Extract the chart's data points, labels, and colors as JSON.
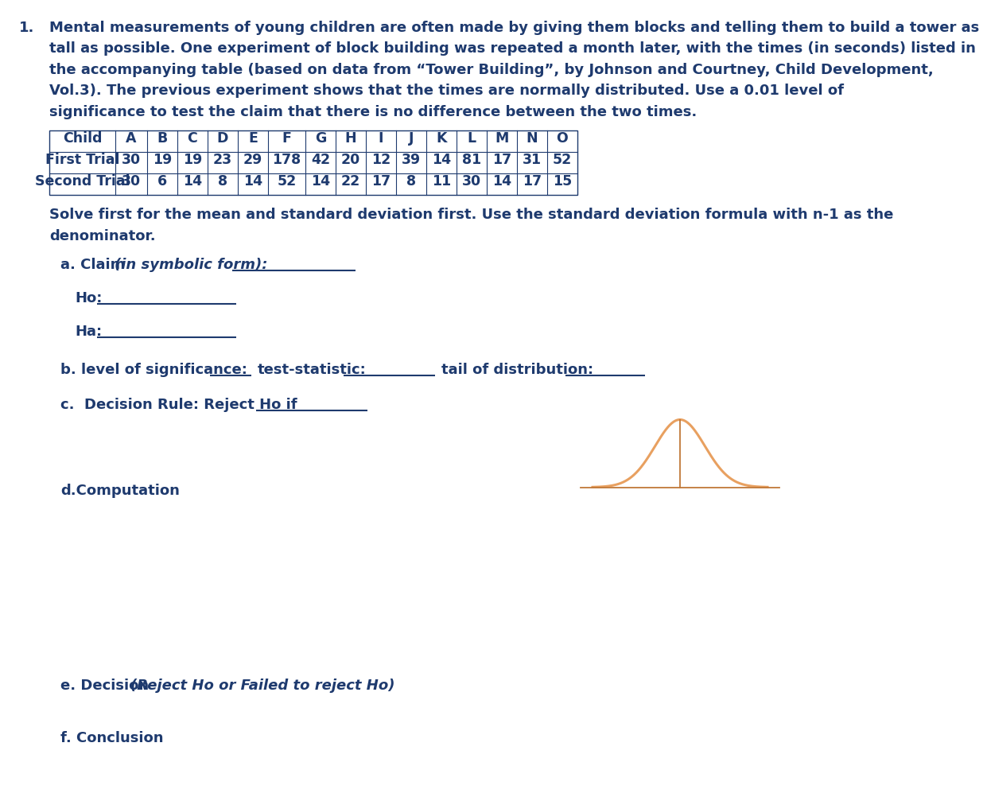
{
  "title_number": "1.",
  "para_line1": "Mental measurements of young children are often made by giving them blocks and telling them to build a tower as",
  "para_line2": "tall as possible. One experiment of block building was repeated a month later, with the times (in seconds) listed in",
  "para_line3": "the accompanying table (based on data from “Tower Building”, by Johnson and Courtney, Child Development,",
  "para_line4": "Vol.3). The previous experiment shows that the times are normally distributed. Use a 0.01 level of",
  "para_line5": "significance to test the claim that there is no difference between the two times.",
  "text_color": "#1e3a6e",
  "table_headers": [
    "Child",
    "A",
    "B",
    "C",
    "D",
    "E",
    "F",
    "G",
    "H",
    "I",
    "J",
    "K",
    "L",
    "M",
    "N",
    "O"
  ],
  "first_trial": [
    30,
    19,
    19,
    23,
    29,
    178,
    42,
    20,
    12,
    39,
    14,
    81,
    17,
    31,
    52
  ],
  "second_trial": [
    30,
    6,
    14,
    8,
    14,
    52,
    14,
    22,
    17,
    8,
    11,
    30,
    14,
    17,
    15
  ],
  "solve_line1": "Solve first for the mean and standard deviation first. Use the standard deviation formula with n-1 as the",
  "solve_line2": "denominator.",
  "bell_color": "#e8a060",
  "bell_line_color": "#c07838",
  "background_color": "#ffffff",
  "fs_para": 13.0,
  "fs_table": 12.5,
  "lh_para": 26.5
}
